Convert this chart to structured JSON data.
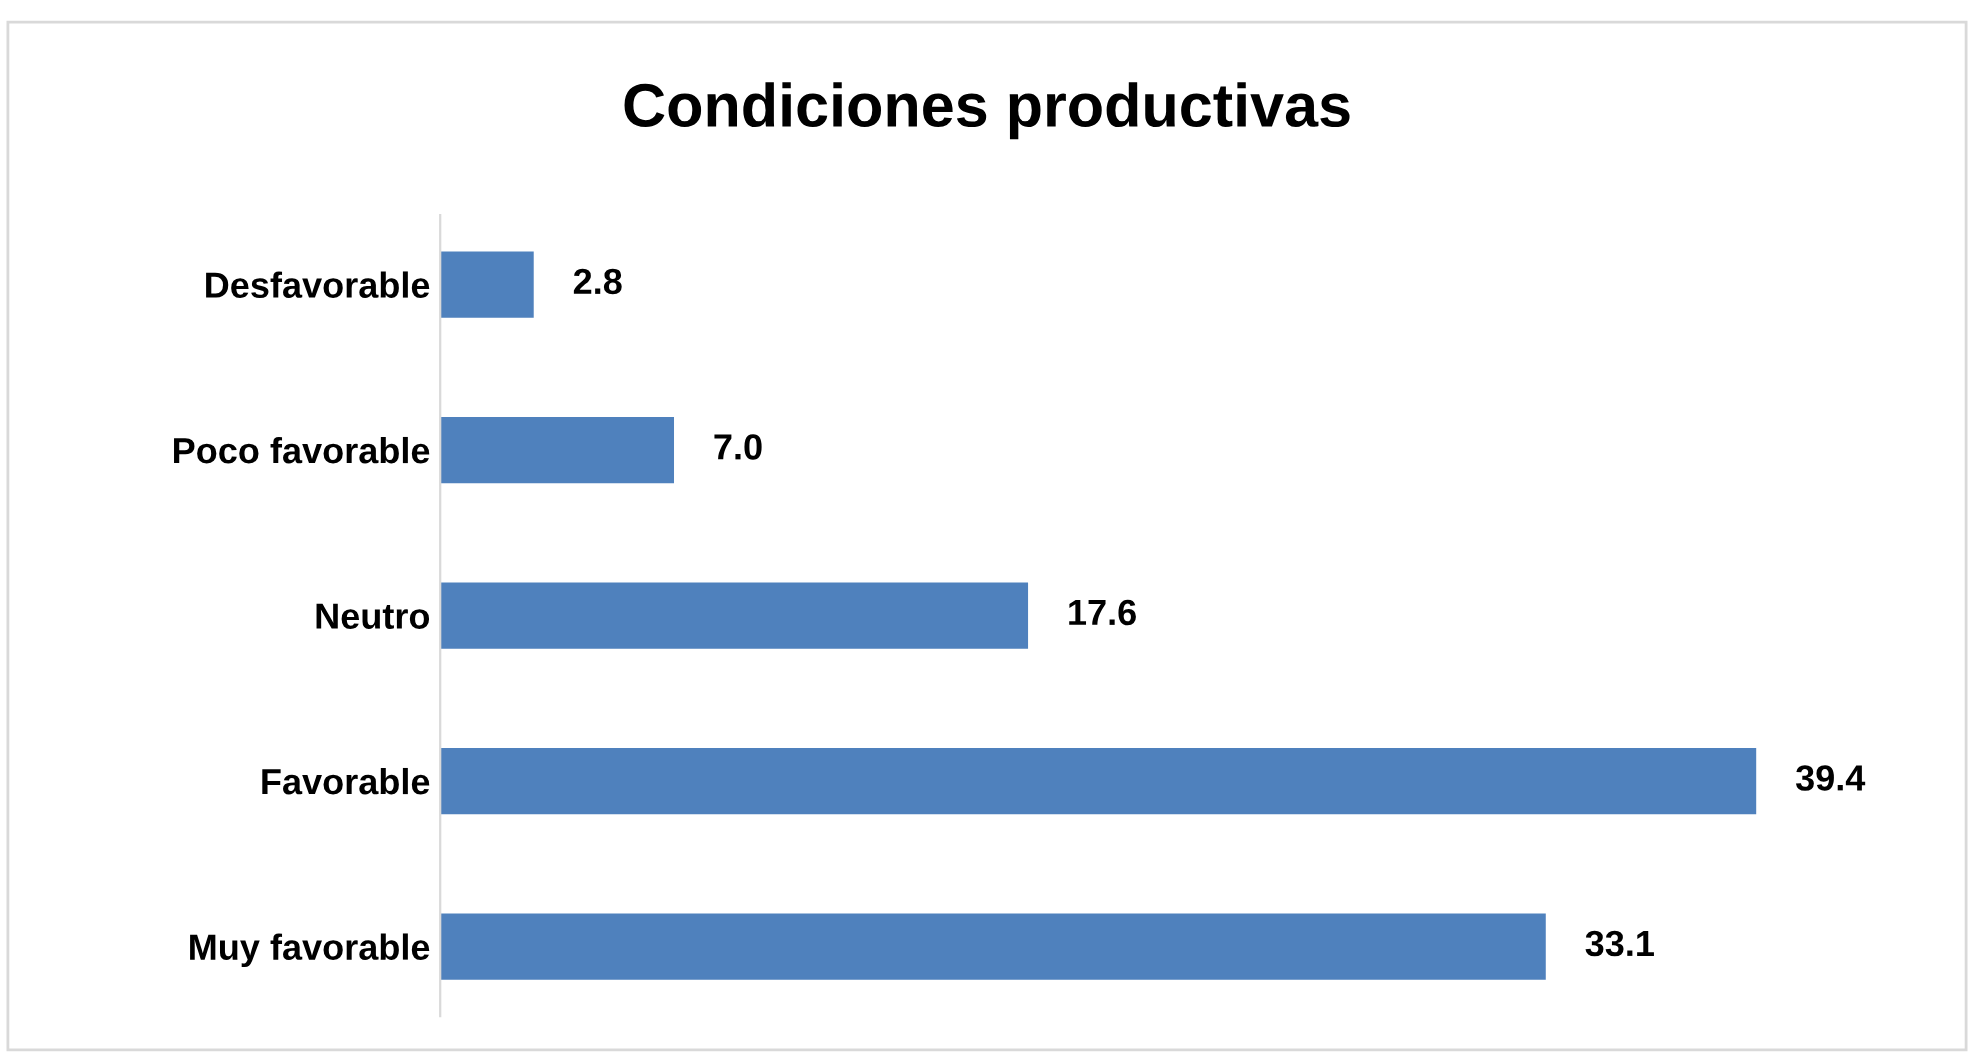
{
  "chart_data": {
    "type": "bar",
    "orientation": "horizontal",
    "title": "Condiciones productivas",
    "categories": [
      "Desfavorable",
      "Poco favorable",
      "Neutro",
      "Favorable",
      "Muy favorable"
    ],
    "values": [
      2.8,
      7.0,
      17.6,
      39.4,
      33.1
    ],
    "value_labels": [
      "2.8",
      "7.0",
      "17.6",
      "39.4",
      "33.1"
    ],
    "color": "#4f81bd",
    "grid": false,
    "legend": false,
    "tick_labels": "y"
  }
}
